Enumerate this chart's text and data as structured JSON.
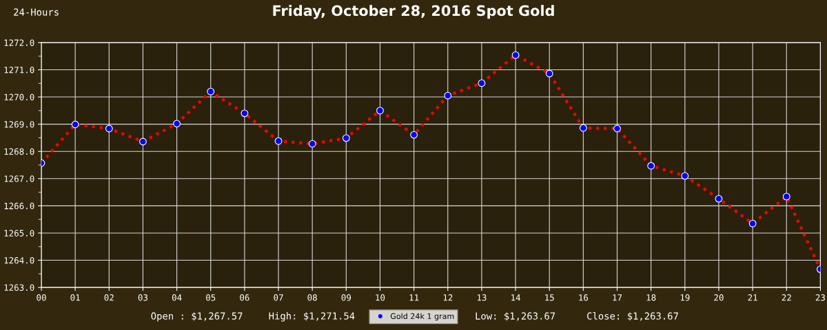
{
  "chart_data": {
    "type": "line",
    "title": "Friday, October 28, 2016 Spot Gold",
    "annotations": [
      "24-Hours",
      "Open : $1,267.57",
      "High: $1,271.54",
      "Low: $1,263.67",
      "Close: $1,263.67"
    ],
    "categories": [
      "00",
      "01",
      "02",
      "03",
      "04",
      "05",
      "06",
      "07",
      "08",
      "09",
      "10",
      "11",
      "12",
      "13",
      "14",
      "15",
      "16",
      "17",
      "18",
      "19",
      "20",
      "21",
      "22",
      "23"
    ],
    "series": [
      {
        "name": "Gold 24k 1 gram",
        "color": "#0000ff",
        "values": [
          1267.57,
          1268.99,
          1268.84,
          1268.36,
          1269.02,
          1270.2,
          1269.4,
          1268.38,
          1268.28,
          1268.49,
          1269.5,
          1268.61,
          1270.05,
          1270.51,
          1271.54,
          1270.86,
          1268.86,
          1268.84,
          1267.47,
          1267.1,
          1266.26,
          1265.35,
          1266.34,
          1263.67
        ]
      }
    ],
    "ylim": [
      1263.0,
      1272.0
    ],
    "yticks": [
      {
        "value": 1263,
        "label": "1263.0"
      },
      {
        "value": 1264,
        "label": "1264.0"
      },
      {
        "value": 1265,
        "label": "1265.0"
      },
      {
        "value": 1266,
        "label": "1266.0"
      },
      {
        "value": 1267,
        "label": "1267.0"
      },
      {
        "value": 1268,
        "label": "1268.0"
      },
      {
        "value": 1269,
        "label": "1269.0"
      },
      {
        "value": 1270,
        "label": "1270.0"
      },
      {
        "value": 1271,
        "label": "1271.0"
      },
      {
        "value": 1272,
        "label": "1272.0"
      }
    ],
    "grid": true,
    "legend": "bottom",
    "marker": "circle",
    "line_style": "dotted"
  }
}
